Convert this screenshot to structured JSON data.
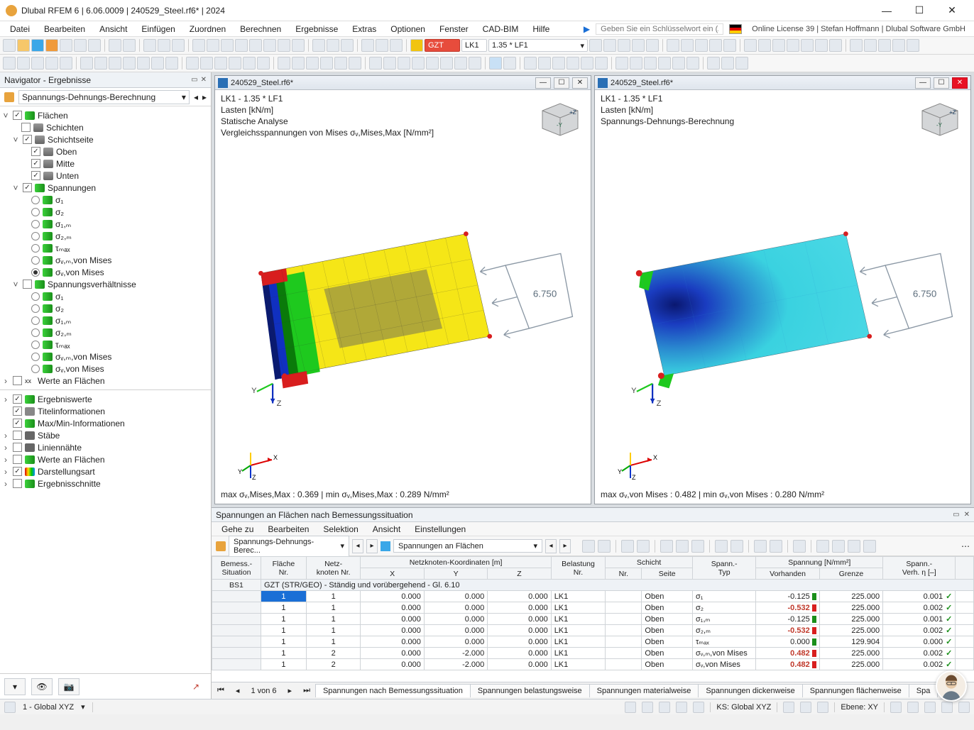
{
  "window": {
    "title": "Dlubal RFEM 6 | 6.06.0009 | 240529_Steel.rf6* | 2024",
    "min": "—",
    "max": "☐",
    "close": "✕"
  },
  "menu": {
    "items": [
      "Datei",
      "Bearbeiten",
      "Ansicht",
      "Einfügen",
      "Zuordnen",
      "Berechnen",
      "Ergebnisse",
      "Extras",
      "Optionen",
      "Fenster",
      "CAD-BIM",
      "Hilfe"
    ],
    "search_placeholder": "Geben Sie ein Schlüsselwort ein (Alt...",
    "license": "Online License 39 | Stefan Hoffmann | Dlubal Software GmbH"
  },
  "toolbar1": {
    "gzt": "GZT",
    "lk": "LK1",
    "combo": "1.35 * LF1"
  },
  "navigator": {
    "title": "Navigator - Ergebnisse",
    "combo": "Spannungs-Dehnungs-Berechnung",
    "tree": {
      "flaechen": "Flächen",
      "schichten": "Schichten",
      "schichtseite": "Schichtseite",
      "oben": "Oben",
      "mitte": "Mitte",
      "unten": "Unten",
      "spannungen": "Spannungen",
      "s1": "σ₁",
      "s2": "σ₂",
      "s1m": "σ₁,ₘ",
      "s2m": "σ₂,ₘ",
      "tmax": "τₘₐₓ",
      "svmvm": "σᵥ,ₘ,von Mises",
      "svvm": "σᵥ,von Mises",
      "spverh": "Spannungsverhältnisse",
      "werte": "Werte an Flächen"
    },
    "lower": {
      "ergebniswerte": "Ergebniswerte",
      "titelinfo": "Titelinformationen",
      "maxmin": "Max/Min-Informationen",
      "staebe": "Stäbe",
      "liniennaehte": "Liniennähte",
      "werte": "Werte an Flächen",
      "darstellung": "Darstellungsart",
      "ergebnisschnitte": "Ergebnisschnitte"
    }
  },
  "view_left": {
    "title": "240529_Steel.rf6*",
    "l1": "LK1 - 1.35 * LF1",
    "l2": "Lasten [kN/m]",
    "l3": "Statische Analyse",
    "l4": "Vergleichsspannungen von Mises σᵥ,Mises,Max [N/mm²]",
    "load": "6.750",
    "status": "max σᵥ,Mises,Max : 0.369 | min σᵥ,Mises,Max : 0.289 N/mm²",
    "colors": {
      "yellow": "#f5e617",
      "green": "#1ec91e",
      "darkgreen": "#0a7a0a",
      "blue": "#1030c0",
      "darkblue": "#0a1a70",
      "red": "#d81e1e",
      "olive": "#b0a838"
    }
  },
  "view_right": {
    "title": "240529_Steel.rf6*",
    "l1": "LK1 - 1.35 * LF1",
    "l2": "Lasten [kN/m]",
    "l3": "Spannungs-Dehnungs-Berechnung",
    "load": "6.750",
    "status": "max σᵥ,von Mises : 0.482 | min σᵥ,von Mises : 0.280 N/mm²",
    "colors": {
      "cyan": "#3ad2e0",
      "blue": "#1a3cc0",
      "dblue": "#0a1870",
      "green": "#1ec91e",
      "red": "#d81e1e"
    }
  },
  "results": {
    "title": "Spannungen an Flächen nach Bemessungssituation",
    "menu": [
      "Gehe zu",
      "Bearbeiten",
      "Selektion",
      "Ansicht",
      "Einstellungen"
    ],
    "combo1": "Spannungs-Dehnungs-Berec...",
    "combo2": "Spannungen an Flächen",
    "headers": {
      "bs": "Bemess.-\nSituation",
      "fl": "Fläche\nNr.",
      "nk": "Netz-\nknoten Nr.",
      "coord": "Netzknoten-Koordinaten [m]",
      "x": "X",
      "y": "Y",
      "z": "Z",
      "bel": "Belastung\nNr.",
      "sch": "Schicht",
      "schnr": "Nr.",
      "seite": "Seite",
      "styp": "Spann.-\nTyp",
      "spannung": "Spannung [N/mm²]",
      "vorh": "Vorhanden",
      "grenze": "Grenze",
      "verh": "Spann.-\nVerh. η [–]"
    },
    "group": "GZT (STR/GEO) - Ständig und vorübergehend - Gl. 6.10",
    "bs": "BS1",
    "rows": [
      {
        "fl": "1",
        "nk": "1",
        "x": "0.000",
        "y": "0.000",
        "z": "0.000",
        "bel": "LK1",
        "seite": "Oben",
        "typ": "σ₁",
        "vorh": "-0.125",
        "gr": "225.000",
        "eta": "0.001",
        "bad": false
      },
      {
        "fl": "1",
        "nk": "1",
        "x": "0.000",
        "y": "0.000",
        "z": "0.000",
        "bel": "LK1",
        "seite": "Oben",
        "typ": "σ₂",
        "vorh": "-0.532",
        "gr": "225.000",
        "eta": "0.002",
        "bad": true
      },
      {
        "fl": "1",
        "nk": "1",
        "x": "0.000",
        "y": "0.000",
        "z": "0.000",
        "bel": "LK1",
        "seite": "Oben",
        "typ": "σ₁,ₘ",
        "vorh": "-0.125",
        "gr": "225.000",
        "eta": "0.001",
        "bad": false
      },
      {
        "fl": "1",
        "nk": "1",
        "x": "0.000",
        "y": "0.000",
        "z": "0.000",
        "bel": "LK1",
        "seite": "Oben",
        "typ": "σ₂,ₘ",
        "vorh": "-0.532",
        "gr": "225.000",
        "eta": "0.002",
        "bad": true
      },
      {
        "fl": "1",
        "nk": "1",
        "x": "0.000",
        "y": "0.000",
        "z": "0.000",
        "bel": "LK1",
        "seite": "Oben",
        "typ": "τₘₐₓ",
        "vorh": "0.000",
        "gr": "129.904",
        "eta": "0.000",
        "bad": false
      },
      {
        "fl": "1",
        "nk": "2",
        "x": "0.000",
        "y": "-2.000",
        "z": "0.000",
        "bel": "LK1",
        "seite": "Oben",
        "typ": "σᵥ,ₘ,von Mises",
        "vorh": "0.482",
        "gr": "225.000",
        "eta": "0.002",
        "bad": true
      },
      {
        "fl": "1",
        "nk": "2",
        "x": "0.000",
        "y": "-2.000",
        "z": "0.000",
        "bel": "LK1",
        "seite": "Oben",
        "typ": "σᵥ,von Mises",
        "vorh": "0.482",
        "gr": "225.000",
        "eta": "0.002",
        "bad": true
      }
    ],
    "page": "1 von 6",
    "tabs": [
      "Spannungen nach Bemessungssituation",
      "Spannungen belastungsweise",
      "Spannungen materialweise",
      "Spannungen dickenweise",
      "Spannungen flächenweise",
      "Spa"
    ]
  },
  "statusbar": {
    "coord": "1 - Global XYZ",
    "ks": "KS: Global XYZ",
    "ebene": "Ebene: XY"
  }
}
